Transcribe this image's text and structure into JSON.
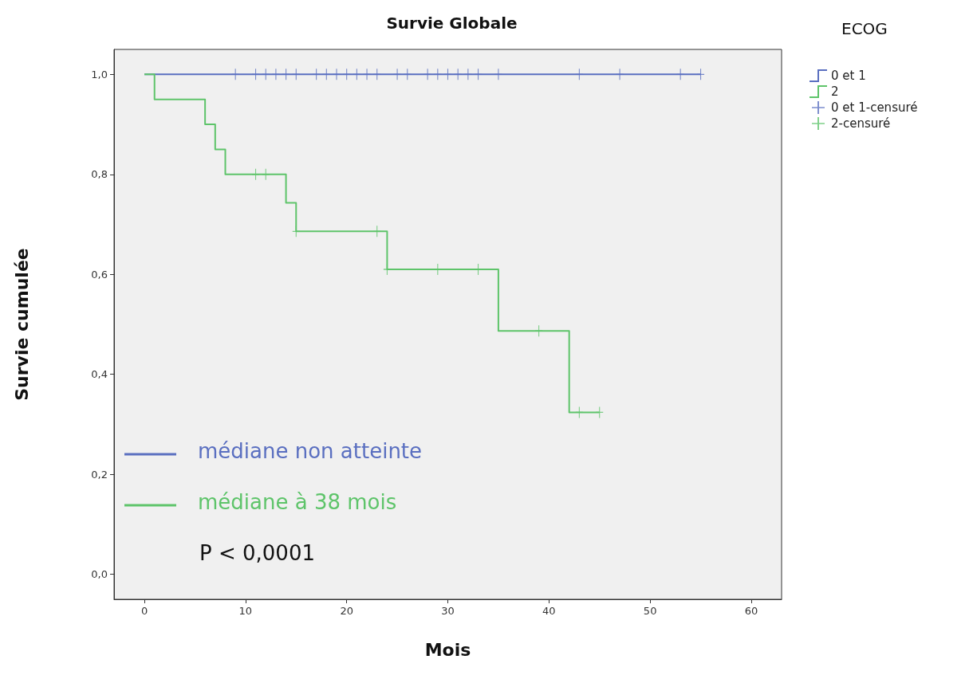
{
  "chart_data": {
    "type": "step",
    "title": "Survie Globale",
    "xlabel": "Mois",
    "ylabel": "Survie cumulée",
    "legend_title": "ECOG",
    "legend": "top right",
    "grid": false,
    "xlim": [
      -3,
      63
    ],
    "xticks": [
      0,
      10,
      20,
      30,
      40,
      50,
      60
    ],
    "ylim": [
      -0.05,
      1.05
    ],
    "yticks": [
      {
        "value": 0,
        "label": "0,0"
      },
      {
        "value": 0.2,
        "label": "0,2"
      },
      {
        "value": 0.4,
        "label": "0,4"
      },
      {
        "value": 0.6,
        "label": "0,6"
      },
      {
        "value": 0.8,
        "label": "0,8"
      },
      {
        "value": 1,
        "label": "1,0"
      }
    ],
    "series": [
      {
        "name": "0 et 1",
        "color": "#5a6fc0",
        "x": [
          0,
          55
        ],
        "values": [
          1,
          1
        ]
      },
      {
        "name": "2",
        "color": "#5ec46a",
        "x": [
          0,
          1,
          6,
          7,
          8,
          14,
          15,
          24,
          35,
          42,
          45
        ],
        "values": [
          1,
          0.95,
          0.9,
          0.85,
          0.8,
          0.743,
          0.686,
          0.61,
          0.487,
          0.324,
          0.324
        ]
      },
      {
        "name": "0 et 1-censuré",
        "type": "scatter",
        "marker": "cross",
        "color": "#5a6fc0",
        "x": [
          9,
          11,
          12,
          13,
          14,
          15,
          17,
          18,
          19,
          20,
          21,
          22,
          23,
          25,
          26,
          28,
          29,
          30,
          31,
          32,
          33,
          35,
          43,
          47,
          53,
          55
        ],
        "values": [
          1,
          1,
          1,
          1,
          1,
          1,
          1,
          1,
          1,
          1,
          1,
          1,
          1,
          1,
          1,
          1,
          1,
          1,
          1,
          1,
          1,
          1,
          1,
          1,
          1,
          1
        ]
      },
      {
        "name": "2-censuré",
        "type": "scatter",
        "marker": "cross",
        "color": "#5ec46a",
        "x": [
          11,
          12,
          15,
          23,
          24,
          29,
          33,
          39,
          43,
          45
        ],
        "values": [
          0.8,
          0.8,
          0.686,
          0.686,
          0.61,
          0.61,
          0.61,
          0.487,
          0.324,
          0.324
        ]
      }
    ],
    "annotations": [
      "médiane non atteinte",
      "médiane à 38 mois",
      "P < 0,0001"
    ]
  }
}
